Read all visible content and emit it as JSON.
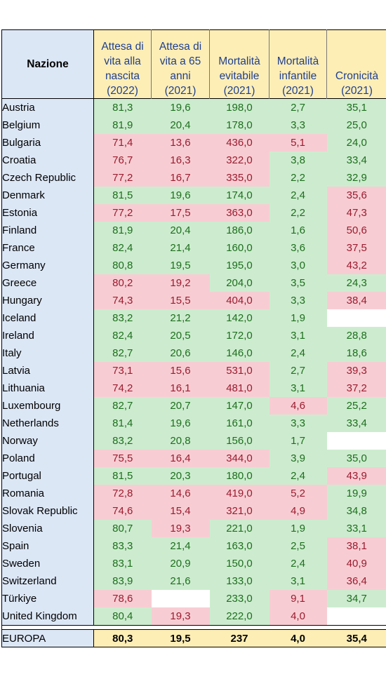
{
  "header": {
    "nation": "Nazione",
    "columns": [
      {
        "l1": "Attesa di",
        "l2": "vita alla",
        "l3": "nascita",
        "year": "(2022)"
      },
      {
        "l1": "Attesa di",
        "l2": "vita a 65",
        "l3": "anni",
        "year": "(2021)"
      },
      {
        "l1": "",
        "l2": "",
        "l3": "Mortalità evitabile",
        "year": "(2021)"
      },
      {
        "l1": "",
        "l2": "Mortalità",
        "l3": "infantile",
        "year": "(2021)"
      },
      {
        "l1": "",
        "l2": "",
        "l3": "Cronicità",
        "year": "(2021)"
      }
    ]
  },
  "rows": [
    {
      "name": "Austria",
      "values": [
        "81,3",
        "19,6",
        "198,0",
        "2,7",
        "35,1"
      ],
      "flags": [
        "g",
        "g",
        "g",
        "g",
        "g"
      ]
    },
    {
      "name": "Belgium",
      "values": [
        "81,9",
        "20,4",
        "178,0",
        "3,3",
        "25,0"
      ],
      "flags": [
        "g",
        "g",
        "g",
        "g",
        "g"
      ]
    },
    {
      "name": "Bulgaria",
      "values": [
        "71,4",
        "13,6",
        "436,0",
        "5,1",
        "24,0"
      ],
      "flags": [
        "r",
        "r",
        "r",
        "r",
        "g"
      ]
    },
    {
      "name": "Croatia",
      "values": [
        "76,7",
        "16,3",
        "322,0",
        "3,8",
        "33,4"
      ],
      "flags": [
        "r",
        "r",
        "r",
        "g",
        "g"
      ]
    },
    {
      "name": "Czech Republic",
      "values": [
        "77,2",
        "16,7",
        "335,0",
        "2,2",
        "32,9"
      ],
      "flags": [
        "r",
        "r",
        "r",
        "g",
        "g"
      ]
    },
    {
      "name": "Denmark",
      "values": [
        "81,5",
        "19,6",
        "174,0",
        "2,4",
        "35,6"
      ],
      "flags": [
        "g",
        "g",
        "g",
        "g",
        "r"
      ]
    },
    {
      "name": "Estonia",
      "values": [
        "77,2",
        "17,5",
        "363,0",
        "2,2",
        "47,3"
      ],
      "flags": [
        "r",
        "r",
        "r",
        "g",
        "r"
      ]
    },
    {
      "name": "Finland",
      "values": [
        "81,9",
        "20,4",
        "186,0",
        "1,6",
        "50,6"
      ],
      "flags": [
        "g",
        "g",
        "g",
        "g",
        "r"
      ]
    },
    {
      "name": "France",
      "values": [
        "82,4",
        "21,4",
        "160,0",
        "3,6",
        "37,5"
      ],
      "flags": [
        "g",
        "g",
        "g",
        "g",
        "r"
      ]
    },
    {
      "name": "Germany",
      "values": [
        "80,8",
        "19,5",
        "195,0",
        "3,0",
        "43,2"
      ],
      "flags": [
        "g",
        "g",
        "g",
        "g",
        "r"
      ]
    },
    {
      "name": "Greece",
      "values": [
        "80,2",
        "19,2",
        "204,0",
        "3,5",
        "24,3"
      ],
      "flags": [
        "r",
        "r",
        "g",
        "g",
        "g"
      ]
    },
    {
      "name": "Hungary",
      "values": [
        "74,3",
        "15,5",
        "404,0",
        "3,3",
        "38,4"
      ],
      "flags": [
        "r",
        "r",
        "r",
        "g",
        "r"
      ]
    },
    {
      "name": "Iceland",
      "values": [
        "83,2",
        "21,2",
        "142,0",
        "1,9",
        ""
      ],
      "flags": [
        "g",
        "g",
        "g",
        "g",
        "w"
      ]
    },
    {
      "name": "Ireland",
      "values": [
        "82,4",
        "20,5",
        "172,0",
        "3,1",
        "28,8"
      ],
      "flags": [
        "g",
        "g",
        "g",
        "g",
        "g"
      ]
    },
    {
      "name": "Italy",
      "values": [
        "82,7",
        "20,6",
        "146,0",
        "2,4",
        "18,6"
      ],
      "flags": [
        "g",
        "g",
        "g",
        "g",
        "g"
      ]
    },
    {
      "name": "Latvia",
      "values": [
        "73,1",
        "15,6",
        "531,0",
        "2,7",
        "39,3"
      ],
      "flags": [
        "r",
        "r",
        "r",
        "g",
        "r"
      ]
    },
    {
      "name": "Lithuania",
      "values": [
        "74,2",
        "16,1",
        "481,0",
        "3,1",
        "37,2"
      ],
      "flags": [
        "r",
        "r",
        "r",
        "g",
        "r"
      ]
    },
    {
      "name": "Luxembourg",
      "values": [
        "82,7",
        "20,7",
        "147,0",
        "4,6",
        "25,2"
      ],
      "flags": [
        "g",
        "g",
        "g",
        "r",
        "g"
      ]
    },
    {
      "name": "Netherlands",
      "values": [
        "81,4",
        "19,6",
        "161,0",
        "3,3",
        "33,4"
      ],
      "flags": [
        "g",
        "g",
        "g",
        "g",
        "g"
      ]
    },
    {
      "name": "Norway",
      "values": [
        "83,2",
        "20,8",
        "156,0",
        "1,7",
        ""
      ],
      "flags": [
        "g",
        "g",
        "g",
        "g",
        "w"
      ]
    },
    {
      "name": "Poland",
      "values": [
        "75,5",
        "16,4",
        "344,0",
        "3,9",
        "35,0"
      ],
      "flags": [
        "r",
        "r",
        "r",
        "g",
        "g"
      ]
    },
    {
      "name": "Portugal",
      "values": [
        "81,5",
        "20,3",
        "180,0",
        "2,4",
        "43,9"
      ],
      "flags": [
        "g",
        "g",
        "g",
        "g",
        "r"
      ]
    },
    {
      "name": "Romania",
      "values": [
        "72,8",
        "14,6",
        "419,0",
        "5,2",
        "19,9"
      ],
      "flags": [
        "r",
        "r",
        "r",
        "r",
        "g"
      ]
    },
    {
      "name": "Slovak Republic",
      "values": [
        "74,6",
        "15,4",
        "321,0",
        "4,9",
        "34,8"
      ],
      "flags": [
        "r",
        "r",
        "r",
        "r",
        "g"
      ]
    },
    {
      "name": "Slovenia",
      "values": [
        "80,7",
        "19,3",
        "221,0",
        "1,9",
        "33,1"
      ],
      "flags": [
        "g",
        "r",
        "g",
        "g",
        "g"
      ]
    },
    {
      "name": "Spain",
      "values": [
        "83,3",
        "21,4",
        "163,0",
        "2,5",
        "38,1"
      ],
      "flags": [
        "g",
        "g",
        "g",
        "g",
        "r"
      ]
    },
    {
      "name": "Sweden",
      "values": [
        "83,1",
        "20,9",
        "150,0",
        "2,4",
        "40,9"
      ],
      "flags": [
        "g",
        "g",
        "g",
        "g",
        "r"
      ]
    },
    {
      "name": "Switzerland",
      "values": [
        "83,9",
        "21,6",
        "133,0",
        "3,1",
        "36,4"
      ],
      "flags": [
        "g",
        "g",
        "g",
        "g",
        "r"
      ]
    },
    {
      "name": "Türkiye",
      "values": [
        "78,6",
        "",
        "233,0",
        "9,1",
        "34,7"
      ],
      "flags": [
        "r",
        "w",
        "g",
        "r",
        "g"
      ]
    },
    {
      "name": "United Kingdom",
      "values": [
        "80,4",
        "19,3",
        "222,0",
        "4,0",
        ""
      ],
      "flags": [
        "g",
        "r",
        "g",
        "r",
        "w"
      ]
    }
  ],
  "total": {
    "name": "EUROPA",
    "values": [
      "80,3",
      "19,5",
      "237",
      "4,0",
      "35,4"
    ]
  },
  "colors": {
    "green_fill": "#cdeccf",
    "green_text": "#1d6e1d",
    "red_fill": "#f7cdd3",
    "red_text": "#9b1b2f",
    "header_fill": "#fdeeb6",
    "nation_fill": "#dce7f6",
    "header_text": "#1f3f8f"
  }
}
